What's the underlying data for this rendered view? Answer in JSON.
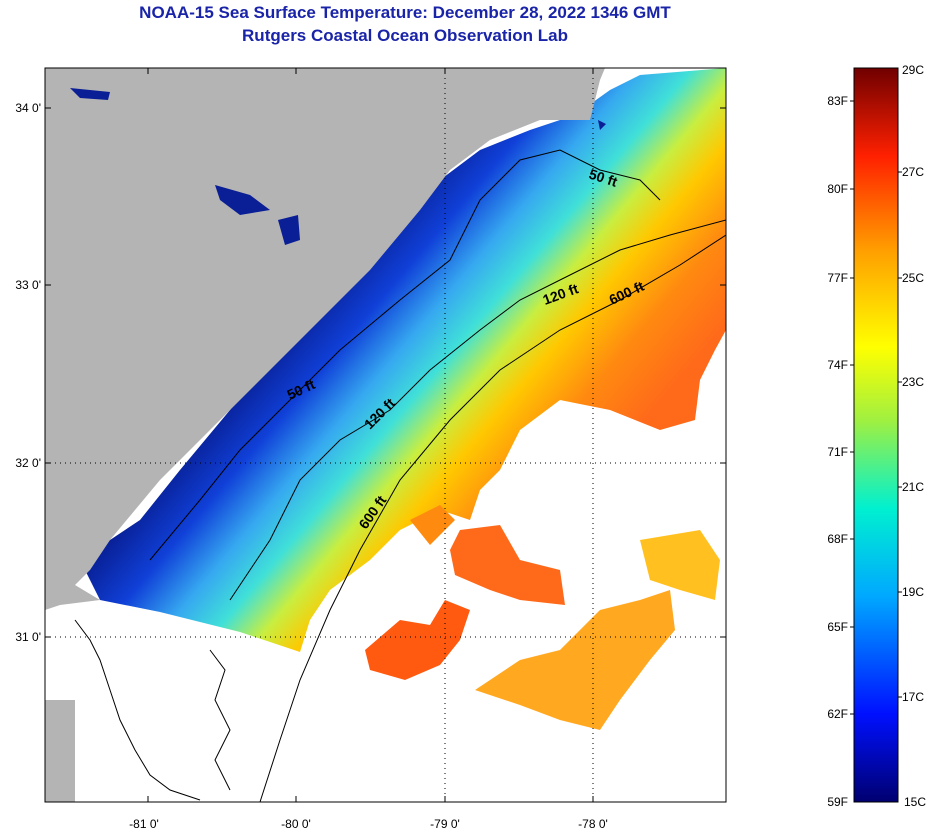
{
  "title": {
    "line1": "NOAA-15 Sea Surface Temperature:  December 28, 2022 1346 GMT",
    "line2": "Rutgers Coastal Ocean Observation Lab"
  },
  "map": {
    "lat_labels": [
      "34 0'",
      "33 0'",
      "32 0'",
      "31 0'"
    ],
    "lon_labels": [
      "-81 0'",
      "-80 0'",
      "-79 0'",
      "-78 0'"
    ],
    "contour_labels": [
      "50 ft",
      "50 ft",
      "120 ft",
      "120 ft",
      "600 ft",
      "600 ft"
    ],
    "colors": {
      "land": "#b4b4b4",
      "cold": "#0a1e96",
      "warm": "#ff6a1a"
    }
  },
  "colorbar": {
    "fahrenheit": [
      "83F",
      "80F",
      "77F",
      "74F",
      "71F",
      "68F",
      "65F",
      "62F",
      "59F"
    ],
    "celsius": [
      "29C",
      "27C",
      "25C",
      "23C",
      "21C",
      "19C",
      "17C",
      "15C"
    ]
  }
}
